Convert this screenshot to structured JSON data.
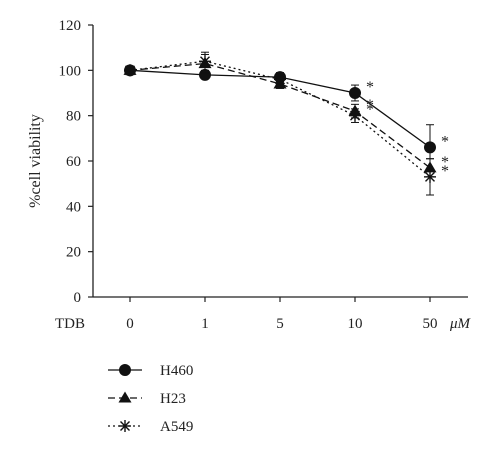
{
  "chart_data": {
    "type": "line",
    "ylabel": "%cell viability",
    "x_axis_prefix": "TDB",
    "x_unit": "μM",
    "categories": [
      "0",
      "1",
      "5",
      "10",
      "50"
    ],
    "ylim": [
      0,
      120
    ],
    "yticks": [
      "0",
      "20",
      "40",
      "60",
      "80",
      "100",
      "120"
    ],
    "series": [
      {
        "name": "H460",
        "marker": "circle",
        "dash": "solid",
        "values": [
          100,
          98,
          97,
          90,
          66
        ],
        "errors": [
          1.5,
          1.5,
          2,
          3.5,
          10
        ],
        "significant": [
          false,
          false,
          false,
          true,
          true
        ]
      },
      {
        "name": "H23",
        "marker": "triangle",
        "dash": "dashed",
        "values": [
          100,
          103,
          94,
          82,
          57
        ],
        "errors": [
          1.5,
          4,
          2,
          3,
          4
        ],
        "significant": [
          false,
          false,
          false,
          true,
          true
        ]
      },
      {
        "name": "A549",
        "marker": "star",
        "dash": "dotted",
        "values": [
          100,
          104,
          96,
          80,
          53
        ],
        "errors": [
          1.5,
          4,
          2,
          3,
          8
        ],
        "significant": [
          false,
          false,
          false,
          true,
          true
        ]
      }
    ],
    "significance_marker": "*",
    "legend_position": "bottom-left",
    "grid": false
  }
}
